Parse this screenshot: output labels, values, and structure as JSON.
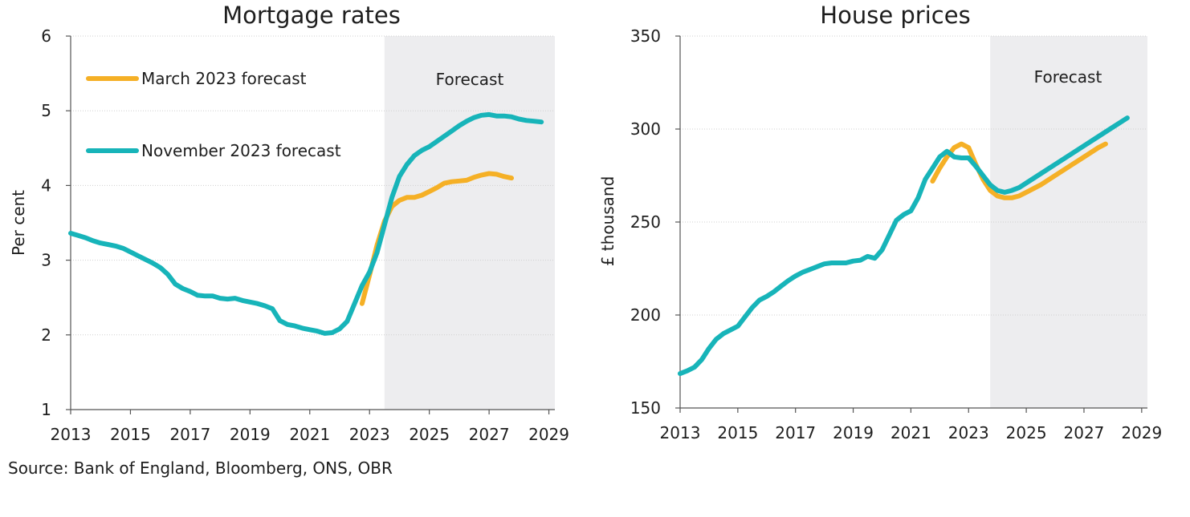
{
  "colors": {
    "march": "#f5b026",
    "november": "#17b4b9",
    "forecast_shade": "#ededef",
    "grid": "#cfcfcf",
    "axis": "#555555"
  },
  "source": "Source: Bank of England, Bloomberg, ONS, OBR",
  "chart_data": [
    {
      "type": "line",
      "title": "Mortgage rates",
      "xlabel": "",
      "ylabel": "Per cent",
      "xlim": [
        2013,
        2029.2
      ],
      "ylim": [
        1,
        6
      ],
      "x_ticks": [
        "2013",
        "2015",
        "2017",
        "2019",
        "2021",
        "2023",
        "2025",
        "2027",
        "2029"
      ],
      "y_ticks": [
        "1",
        "2",
        "3",
        "4",
        "5",
        "6"
      ],
      "grid": "horizontal dotted",
      "forecast_region": {
        "label": "Forecast",
        "start": 2023.5,
        "end": 2029.2
      },
      "legend": {
        "placement": "top-left"
      },
      "series": [
        {
          "name": "March 2023 forecast",
          "color_key": "march",
          "points": [
            [
              2022.75,
              2.42
            ],
            [
              2023.0,
              2.8
            ],
            [
              2023.25,
              3.2
            ],
            [
              2023.5,
              3.52
            ],
            [
              2023.75,
              3.72
            ],
            [
              2024.0,
              3.8
            ],
            [
              2024.25,
              3.84
            ],
            [
              2024.5,
              3.84
            ],
            [
              2024.75,
              3.87
            ],
            [
              2025.0,
              3.92
            ],
            [
              2025.25,
              3.97
            ],
            [
              2025.5,
              4.03
            ],
            [
              2025.75,
              4.05
            ],
            [
              2026.0,
              4.06
            ],
            [
              2026.25,
              4.07
            ],
            [
              2026.5,
              4.11
            ],
            [
              2026.75,
              4.14
            ],
            [
              2027.0,
              4.16
            ],
            [
              2027.25,
              4.15
            ],
            [
              2027.5,
              4.12
            ],
            [
              2027.75,
              4.1
            ]
          ]
        },
        {
          "name": "November 2023 forecast",
          "color_key": "november",
          "points": [
            [
              2013.0,
              3.36
            ],
            [
              2013.25,
              3.33
            ],
            [
              2013.5,
              3.3
            ],
            [
              2013.75,
              3.26
            ],
            [
              2014.0,
              3.23
            ],
            [
              2014.25,
              3.21
            ],
            [
              2014.5,
              3.19
            ],
            [
              2014.75,
              3.16
            ],
            [
              2015.0,
              3.11
            ],
            [
              2015.25,
              3.06
            ],
            [
              2015.5,
              3.01
            ],
            [
              2015.75,
              2.96
            ],
            [
              2016.0,
              2.9
            ],
            [
              2016.25,
              2.81
            ],
            [
              2016.5,
              2.68
            ],
            [
              2016.75,
              2.62
            ],
            [
              2017.0,
              2.58
            ],
            [
              2017.25,
              2.53
            ],
            [
              2017.5,
              2.52
            ],
            [
              2017.75,
              2.52
            ],
            [
              2018.0,
              2.49
            ],
            [
              2018.25,
              2.48
            ],
            [
              2018.5,
              2.49
            ],
            [
              2018.75,
              2.46
            ],
            [
              2019.0,
              2.44
            ],
            [
              2019.25,
              2.42
            ],
            [
              2019.5,
              2.39
            ],
            [
              2019.75,
              2.35
            ],
            [
              2020.0,
              2.19
            ],
            [
              2020.25,
              2.14
            ],
            [
              2020.5,
              2.12
            ],
            [
              2020.75,
              2.09
            ],
            [
              2021.0,
              2.07
            ],
            [
              2021.25,
              2.05
            ],
            [
              2021.5,
              2.02
            ],
            [
              2021.75,
              2.03
            ],
            [
              2022.0,
              2.08
            ],
            [
              2022.25,
              2.18
            ],
            [
              2022.5,
              2.42
            ],
            [
              2022.75,
              2.66
            ],
            [
              2023.0,
              2.84
            ],
            [
              2023.25,
              3.1
            ],
            [
              2023.5,
              3.47
            ],
            [
              2023.75,
              3.84
            ],
            [
              2024.0,
              4.12
            ],
            [
              2024.25,
              4.28
            ],
            [
              2024.5,
              4.4
            ],
            [
              2024.75,
              4.47
            ],
            [
              2025.0,
              4.52
            ],
            [
              2025.25,
              4.59
            ],
            [
              2025.5,
              4.66
            ],
            [
              2025.75,
              4.73
            ],
            [
              2026.0,
              4.8
            ],
            [
              2026.25,
              4.86
            ],
            [
              2026.5,
              4.91
            ],
            [
              2026.75,
              4.94
            ],
            [
              2027.0,
              4.95
            ],
            [
              2027.25,
              4.93
            ],
            [
              2027.5,
              4.93
            ],
            [
              2027.75,
              4.92
            ],
            [
              2028.0,
              4.89
            ],
            [
              2028.25,
              4.87
            ],
            [
              2028.5,
              4.86
            ],
            [
              2028.75,
              4.85
            ]
          ]
        }
      ]
    },
    {
      "type": "line",
      "title": "House prices",
      "xlabel": "",
      "ylabel": "£ thousand",
      "xlim": [
        2013,
        2029.2
      ],
      "ylim": [
        150,
        350
      ],
      "x_ticks": [
        "2013",
        "2015",
        "2017",
        "2019",
        "2021",
        "2023",
        "2025",
        "2027",
        "2029"
      ],
      "y_ticks": [
        "150",
        "200",
        "250",
        "300",
        "350"
      ],
      "grid": "horizontal dotted",
      "forecast_region": {
        "label": "Forecast",
        "start": 2023.75,
        "end": 2029.2
      },
      "legend": {
        "placement": "none"
      },
      "series": [
        {
          "name": "March 2023 forecast",
          "color_key": "march",
          "points": [
            [
              2021.75,
              272
            ],
            [
              2022.0,
              279
            ],
            [
              2022.25,
              285
            ],
            [
              2022.5,
              290
            ],
            [
              2022.75,
              292
            ],
            [
              2023.0,
              290
            ],
            [
              2023.25,
              281
            ],
            [
              2023.5,
              273
            ],
            [
              2023.75,
              267
            ],
            [
              2024.0,
              264
            ],
            [
              2024.25,
              263
            ],
            [
              2024.5,
              263
            ],
            [
              2024.75,
              264
            ],
            [
              2025.0,
              266
            ],
            [
              2025.5,
              270
            ],
            [
              2026.0,
              275
            ],
            [
              2026.5,
              280
            ],
            [
              2027.0,
              285
            ],
            [
              2027.5,
              290
            ],
            [
              2027.75,
              292
            ]
          ]
        },
        {
          "name": "November 2023 forecast",
          "color_key": "november",
          "points": [
            [
              2013.0,
              168.5
            ],
            [
              2013.25,
              170
            ],
            [
              2013.5,
              172
            ],
            [
              2013.75,
              176
            ],
            [
              2014.0,
              182
            ],
            [
              2014.25,
              187
            ],
            [
              2014.5,
              190
            ],
            [
              2014.75,
              192
            ],
            [
              2015.0,
              194
            ],
            [
              2015.25,
              199
            ],
            [
              2015.5,
              204
            ],
            [
              2015.75,
              208
            ],
            [
              2016.0,
              210
            ],
            [
              2016.25,
              212.5
            ],
            [
              2016.5,
              215.5
            ],
            [
              2016.75,
              218.5
            ],
            [
              2017.0,
              221
            ],
            [
              2017.25,
              223
            ],
            [
              2017.5,
              224.5
            ],
            [
              2017.75,
              226
            ],
            [
              2018.0,
              227.5
            ],
            [
              2018.25,
              228
            ],
            [
              2018.5,
              228
            ],
            [
              2018.75,
              228
            ],
            [
              2019.0,
              229
            ],
            [
              2019.25,
              229.5
            ],
            [
              2019.5,
              231.5
            ],
            [
              2019.75,
              230.5
            ],
            [
              2020.0,
              235
            ],
            [
              2020.25,
              243
            ],
            [
              2020.5,
              251
            ],
            [
              2020.75,
              254
            ],
            [
              2021.0,
              256
            ],
            [
              2021.25,
              263
            ],
            [
              2021.5,
              273
            ],
            [
              2021.75,
              279
            ],
            [
              2022.0,
              285
            ],
            [
              2022.25,
              288
            ],
            [
              2022.5,
              285
            ],
            [
              2022.75,
              284.5
            ],
            [
              2023.0,
              284.5
            ],
            [
              2023.25,
              280
            ],
            [
              2023.5,
              275
            ],
            [
              2023.75,
              270
            ],
            [
              2024.0,
              267
            ],
            [
              2024.25,
              266
            ],
            [
              2024.5,
              267
            ],
            [
              2024.75,
              268.5
            ],
            [
              2025.0,
              271
            ],
            [
              2025.5,
              276
            ],
            [
              2026.0,
              281
            ],
            [
              2026.5,
              286
            ],
            [
              2027.0,
              291
            ],
            [
              2027.5,
              296
            ],
            [
              2028.0,
              301
            ],
            [
              2028.5,
              306
            ]
          ]
        }
      ]
    }
  ]
}
